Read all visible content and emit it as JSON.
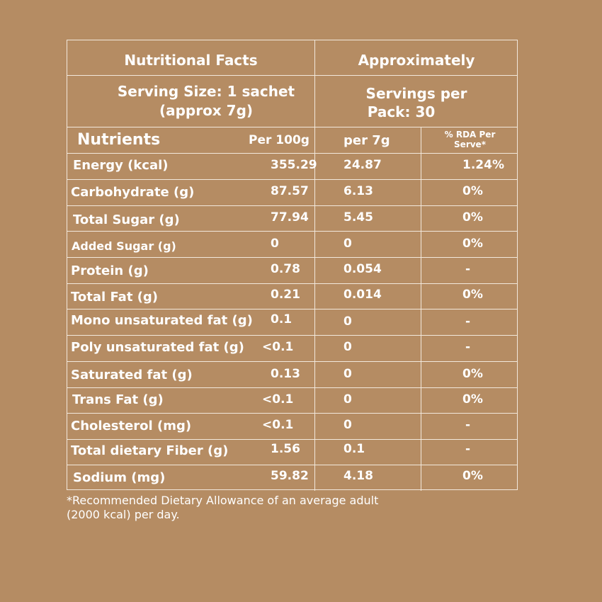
{
  "header": {
    "title": "Nutritional Facts",
    "approx": "Approximately",
    "serving_line1": "Serving Size: 1 sachet",
    "serving_line2": "(approx 7g)",
    "servings_line1": "Servings per",
    "servings_line2": "Pack: 30"
  },
  "columns": {
    "nutrients": "Nutrients",
    "per100": "Per 100g",
    "per7": "per 7g",
    "rda_line1": "% RDA Per",
    "rda_line2": "Serve*"
  },
  "rows": [
    {
      "name": "Energy (kcal)",
      "per100": "355.29",
      "per7": "24.87",
      "rda": "1.24%"
    },
    {
      "name": "Carbohydrate (g)",
      "per100": "87.57",
      "per7": "6.13",
      "rda": "0%"
    },
    {
      "name": "Total Sugar (g)",
      "per100": "77.94",
      "per7": "5.45",
      "rda": "0%"
    },
    {
      "name": "Added Sugar (g)",
      "per100": "0",
      "per7": "0",
      "rda": "0%"
    },
    {
      "name": "Protein (g)",
      "per100": "0.78",
      "per7": "0.054",
      "rda": "-"
    },
    {
      "name": "Total Fat (g)",
      "per100": "0.21",
      "per7": "0.014",
      "rda": "0%"
    },
    {
      "name": "Mono unsaturated fat (g)",
      "per100": "0.1",
      "per7": "0",
      "rda": "-"
    },
    {
      "name": "Poly unsaturated fat (g)",
      "per100": "<0.1",
      "per7": "0",
      "rda": "-"
    },
    {
      "name": "Saturated fat (g)",
      "per100": "0.13",
      "per7": "0",
      "rda": "0%"
    },
    {
      "name": "Trans Fat (g)",
      "per100": "<0.1",
      "per7": "0",
      "rda": "0%"
    },
    {
      "name": "Cholesterol (mg)",
      "per100": "<0.1",
      "per7": "0",
      "rda": "-"
    },
    {
      "name": "Total dietary Fiber (g)",
      "per100": "1.56",
      "per7": "0.1",
      "rda": "-"
    },
    {
      "name": "Sodium (mg)",
      "per100": "59.82",
      "per7": "4.18",
      "rda": "0%"
    }
  ],
  "footnote": {
    "line1": "*Recommended Dietary Allowance of an average adult",
    "line2": "(2000 kcal) per day."
  }
}
